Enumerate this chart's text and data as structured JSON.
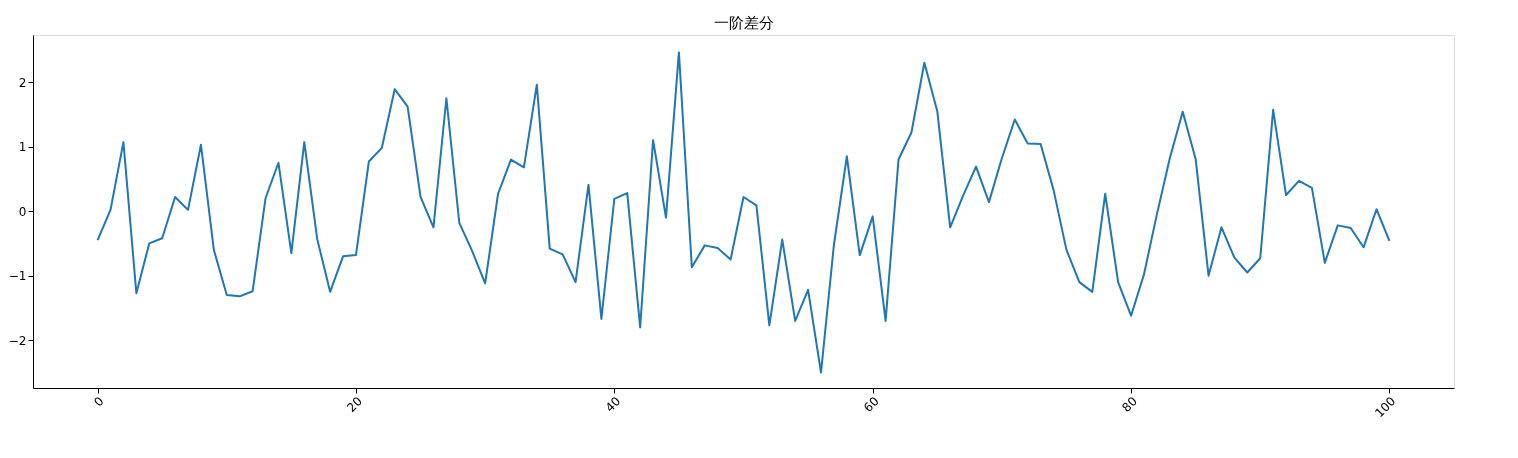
{
  "chart_data": {
    "type": "line",
    "title": "一阶差分",
    "x": [
      0,
      1,
      2,
      3,
      4,
      5,
      6,
      7,
      8,
      9,
      10,
      11,
      12,
      13,
      14,
      15,
      16,
      17,
      18,
      19,
      20,
      21,
      22,
      23,
      24,
      25,
      26,
      27,
      28,
      29,
      30,
      31,
      32,
      33,
      34,
      35,
      36,
      37,
      38,
      39,
      40,
      41,
      42,
      43,
      44,
      45,
      46,
      47,
      48,
      49,
      50,
      51,
      52,
      53,
      54,
      55,
      56,
      57,
      58,
      59,
      60,
      61,
      62,
      63,
      64,
      65,
      66,
      67,
      68,
      69,
      70,
      71,
      72,
      73,
      74,
      75,
      76,
      77,
      78,
      79,
      80,
      81,
      82,
      83,
      84,
      85,
      86,
      87,
      88,
      89,
      90,
      91,
      92,
      93,
      94,
      95,
      96,
      97,
      98,
      99,
      100
    ],
    "series": [
      {
        "color": "#1f77b4",
        "values": [
          -0.45,
          0.02,
          1.07,
          -1.27,
          -0.5,
          -0.42,
          0.22,
          0.02,
          1.03,
          -0.6,
          -1.3,
          -1.32,
          -1.24,
          0.2,
          0.75,
          -0.65,
          1.07,
          -0.43,
          -1.25,
          -0.7,
          -0.68,
          0.77,
          0.98,
          1.89,
          1.62,
          0.22,
          -0.25,
          1.75,
          -0.18,
          -0.62,
          -1.12,
          0.27,
          0.8,
          0.68,
          1.96,
          -0.58,
          -0.67,
          -1.1,
          0.41,
          -1.67,
          0.19,
          0.28,
          -1.8,
          1.1,
          -0.1,
          2.46,
          -0.87,
          -0.53,
          -0.57,
          -0.75,
          0.22,
          0.09,
          -1.77,
          -0.44,
          -1.7,
          -1.22,
          -2.5,
          -0.52,
          0.85,
          -0.68,
          -0.08,
          -1.7,
          0.8,
          1.22,
          2.3,
          1.55,
          -0.25,
          0.24,
          0.69,
          0.14,
          0.82,
          1.42,
          1.05,
          1.04,
          0.33,
          -0.6,
          -1.1,
          -1.25,
          0.27,
          -1.1,
          -1.62,
          -0.98,
          -0.05,
          0.82,
          1.54,
          0.81,
          -1.0,
          -0.25,
          -0.72,
          -0.95,
          -0.73,
          1.57,
          0.25,
          0.47,
          0.36,
          -0.8,
          -0.22,
          -0.26,
          -0.56,
          0.03,
          -0.46
        ]
      }
    ],
    "xlim": [
      -5,
      105
    ],
    "xticks": [
      0,
      20,
      40,
      60,
      80,
      100
    ],
    "ylim": [
      -2.74,
      2.73
    ],
    "yticks": [
      -2,
      -1,
      0,
      1,
      2
    ],
    "grid": false,
    "legend": false,
    "marker": "none",
    "line_style": "solid"
  }
}
